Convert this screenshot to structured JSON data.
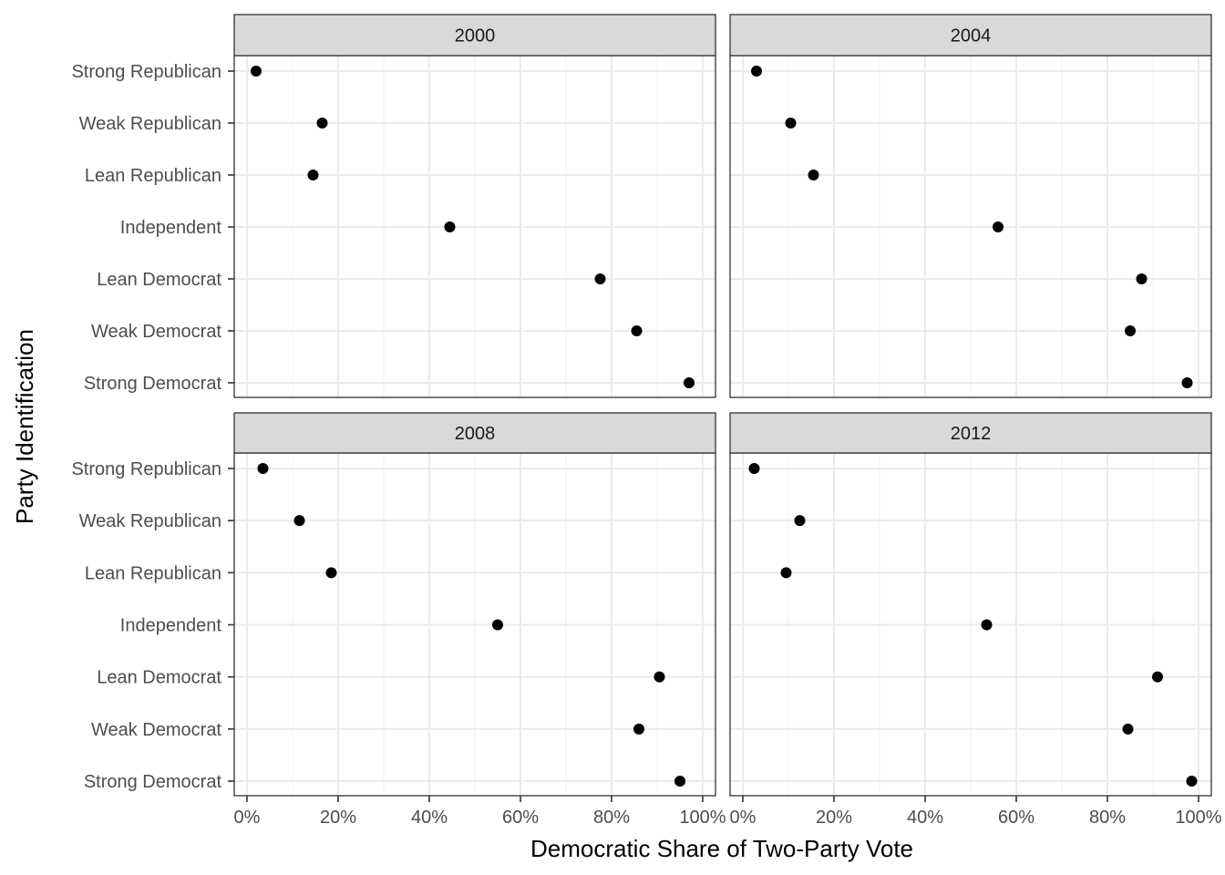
{
  "chart_data": {
    "type": "scatter",
    "xlabel": "Democratic Share of Two-Party Vote",
    "ylabel": "Party Identification",
    "xlim": [
      0,
      1
    ],
    "x_ticks": [
      "0%",
      "20%",
      "40%",
      "60%",
      "80%",
      "100%"
    ],
    "categories": [
      "Strong Republican",
      "Weak Republican",
      "Lean Republican",
      "Independent",
      "Lean Democrat",
      "Weak Democrat",
      "Strong Democrat"
    ],
    "grid": true,
    "point_color": "#000000",
    "panels": [
      {
        "title": "2000",
        "values": [
          0.02,
          0.165,
          0.145,
          0.445,
          0.775,
          0.855,
          0.97
        ]
      },
      {
        "title": "2004",
        "values": [
          0.03,
          0.105,
          0.155,
          0.56,
          0.875,
          0.85,
          0.975
        ]
      },
      {
        "title": "2008",
        "values": [
          0.035,
          0.115,
          0.185,
          0.55,
          0.905,
          0.86,
          0.95
        ]
      },
      {
        "title": "2012",
        "values": [
          0.025,
          0.125,
          0.095,
          0.535,
          0.91,
          0.845,
          0.985
        ]
      }
    ]
  }
}
